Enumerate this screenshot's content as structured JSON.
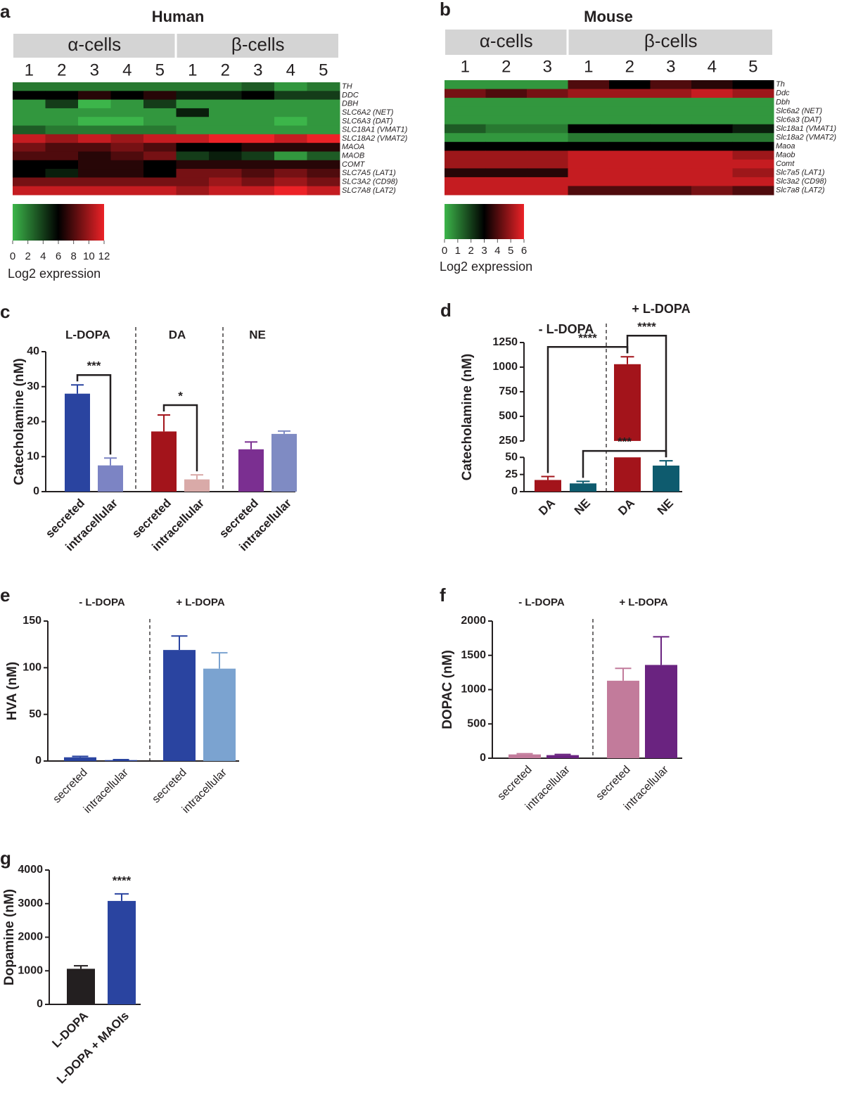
{
  "chart_data": [
    {
      "panel": "a",
      "type": "heatmap",
      "title": "Human",
      "cell_groups": [
        {
          "name": "α-cells",
          "samples": [
            "1",
            "2",
            "3",
            "4",
            "5"
          ]
        },
        {
          "name": "β-cells",
          "samples": [
            "1",
            "2",
            "3",
            "4",
            "5"
          ]
        }
      ],
      "genes": [
        "TH",
        "DDC",
        "DBH",
        "SLC6A2 (NET)",
        "SLC6A3 (DAT)",
        "SLC18A1 (VMAT1)",
        "SLC18A2 (VMAT2)",
        "MAOA",
        "MAOB",
        "COMT",
        "SLC7A5 (LAT1)",
        "SLC3A2 (CD98)",
        "SLC7A8 (LAT2)"
      ],
      "values": [
        [
          2,
          2,
          2,
          2,
          2,
          2,
          2,
          3,
          1,
          2
        ],
        [
          6,
          6,
          7,
          6,
          7,
          5,
          5,
          6,
          4,
          4
        ],
        [
          1,
          4,
          0,
          1,
          4,
          1,
          1,
          1,
          1,
          1
        ],
        [
          1,
          1,
          1,
          1,
          1,
          5,
          1,
          1,
          1,
          1
        ],
        [
          1,
          1,
          0,
          0,
          1,
          1,
          1,
          1,
          0,
          1
        ],
        [
          3,
          2,
          2,
          2,
          2,
          1,
          1,
          1,
          1,
          1
        ],
        [
          11,
          10,
          11,
          10,
          11,
          11,
          12,
          12,
          11,
          12
        ],
        [
          9,
          8,
          8,
          9,
          8,
          6,
          6,
          7,
          7,
          7
        ],
        [
          8,
          8,
          7,
          8,
          9,
          4,
          5,
          4,
          1,
          3
        ],
        [
          6,
          6,
          7,
          7,
          6,
          7,
          7,
          7,
          7,
          7
        ],
        [
          6,
          5,
          7,
          7,
          6,
          9,
          9,
          8,
          9,
          8
        ],
        [
          9,
          9,
          9,
          9,
          9,
          9,
          10,
          9,
          10,
          9
        ],
        [
          11,
          11,
          11,
          11,
          11,
          10,
          11,
          11,
          12,
          11
        ]
      ],
      "colorscale": [
        "#3cb54a",
        "#000000",
        "#ec2227"
      ],
      "zlim": [
        0,
        12
      ],
      "zticks": [
        0,
        2,
        4,
        6,
        8,
        10,
        12
      ],
      "colorbar_label": "Log2 expression"
    },
    {
      "panel": "b",
      "type": "heatmap",
      "title": "Mouse",
      "cell_groups": [
        {
          "name": "α-cells",
          "samples": [
            "1",
            "2",
            "3"
          ]
        },
        {
          "name": "β-cells",
          "samples": [
            "1",
            "2",
            "3",
            "4",
            "5"
          ]
        }
      ],
      "genes": [
        "Th",
        "Ddc",
        "Dbh",
        "Slc6a2 (NET)",
        "Slc6a3 (DAT)",
        "Slc18a1 (VMAT1)",
        "Slc18a2 (VMAT2)",
        "Maoa",
        "Maob",
        "Comt",
        "Slc7a5 (LAT1)",
        "Slc3a2 (CD98)",
        "Slc7a8 (LAT2)"
      ],
      "values": [
        [
          0.5,
          0.5,
          0.5,
          4,
          3,
          4,
          3.5,
          3
        ],
        [
          4.5,
          4,
          4.5,
          5,
          5,
          5,
          5.5,
          5
        ],
        [
          0.5,
          0.5,
          0.5,
          0.5,
          0.5,
          0.5,
          0.5,
          0.5
        ],
        [
          0.5,
          0.5,
          0.5,
          0.5,
          0.5,
          0.5,
          0.5,
          0.5
        ],
        [
          0.5,
          0.5,
          0.5,
          0.5,
          0.5,
          0.5,
          0.5,
          0.5
        ],
        [
          1.5,
          1,
          1,
          3,
          3,
          3,
          3,
          2.5
        ],
        [
          0.5,
          0.5,
          0.5,
          1,
          1,
          1,
          1,
          1
        ],
        [
          3,
          3,
          3,
          3,
          3,
          3,
          3,
          3
        ],
        [
          5,
          5,
          5,
          5.5,
          5.5,
          5.5,
          5.5,
          5
        ],
        [
          5,
          5,
          5,
          5.5,
          5.5,
          5.5,
          5.5,
          5.5
        ],
        [
          3.5,
          3.5,
          3.5,
          5.5,
          5.5,
          5.5,
          5.5,
          5
        ],
        [
          5.5,
          5.5,
          5.5,
          5.5,
          5.5,
          5.5,
          5.5,
          5.5
        ],
        [
          5.5,
          5.5,
          5.5,
          4,
          4,
          4,
          4.5,
          4
        ]
      ],
      "colorscale": [
        "#3cb54a",
        "#000000",
        "#ec2227"
      ],
      "zlim": [
        0,
        6
      ],
      "zticks": [
        0,
        1,
        2,
        3,
        4,
        5,
        6
      ],
      "colorbar_label": "Log2 expression"
    },
    {
      "panel": "c",
      "type": "bar",
      "ylabel": "Catecholamine (nM)",
      "groups": [
        "L-DOPA",
        "DA",
        "NE"
      ],
      "categories": [
        "secreted",
        "intracellular",
        "secreted",
        "intracellular",
        "secreted",
        "intracellular"
      ],
      "values": [
        28,
        7.5,
        17.2,
        3.5,
        12.1,
        16.5
      ],
      "errors": [
        2.5,
        2.1,
        4.7,
        1.3,
        2.1,
        0.8
      ],
      "colors": [
        "#2a44a0",
        "#7c84c4",
        "#a3141b",
        "#d9aaa8",
        "#7b2f91",
        "#7f8bc3"
      ],
      "ylim": [
        0,
        40
      ],
      "yticks": [
        0,
        10,
        20,
        30,
        40
      ],
      "annotations": [
        {
          "text": "***",
          "between": [
            0,
            1
          ]
        },
        {
          "text": "*",
          "between": [
            2,
            3
          ]
        }
      ]
    },
    {
      "panel": "d",
      "type": "bar",
      "ylabel": "Catecholamine (nM)",
      "groups": [
        "- L-DOPA",
        "+ L-DOPA"
      ],
      "categories": [
        "DA",
        "NE",
        "DA",
        "NE"
      ],
      "values": [
        17,
        12,
        1030,
        38
      ],
      "errors": [
        5,
        3,
        75,
        7
      ],
      "colors": [
        "#a3141b",
        "#0e5b6e",
        "#a3141b",
        "#0e5b6e"
      ],
      "ylim": [
        0,
        1250
      ],
      "yticks": [
        0,
        25,
        50,
        250,
        500,
        750,
        1000,
        1250
      ],
      "axis_break": [
        50,
        250
      ],
      "annotations": [
        {
          "text": "****",
          "between": [
            0,
            2
          ]
        },
        {
          "text": "****",
          "between": [
            2,
            3
          ]
        },
        {
          "text": "***",
          "between": [
            1,
            3
          ]
        }
      ]
    },
    {
      "panel": "e",
      "type": "bar",
      "ylabel": "HVA (nM)",
      "groups": [
        "- L-DOPA",
        "+ L-DOPA"
      ],
      "categories": [
        "secreted",
        "intracellular",
        "secreted",
        "intracellular"
      ],
      "values": [
        4,
        1,
        119,
        99
      ],
      "errors": [
        1,
        0.5,
        15,
        17
      ],
      "colors": [
        "#2a44a0",
        "#2a44a0",
        "#2a44a0",
        "#7ba3d0"
      ],
      "ylim": [
        0,
        150
      ],
      "yticks": [
        0,
        50,
        100,
        150
      ],
      "annotations": []
    },
    {
      "panel": "f",
      "type": "bar",
      "ylabel": "DOPAC (nM)",
      "groups": [
        "- L-DOPA",
        "+ L-DOPA"
      ],
      "categories": [
        "secreted",
        "intracellular",
        "secreted",
        "intracellular"
      ],
      "values": [
        55,
        45,
        1130,
        1360
      ],
      "errors": [
        10,
        10,
        180,
        410
      ],
      "colors": [
        "#c27b9b",
        "#6a2380",
        "#c27b9b",
        "#6a2380"
      ],
      "ylim": [
        0,
        2000
      ],
      "yticks": [
        0,
        500,
        1000,
        1500,
        2000
      ],
      "annotations": []
    },
    {
      "panel": "g",
      "type": "bar",
      "ylabel": "Dopamine (nM)",
      "groups": [],
      "categories": [
        "L-DOPA",
        "L-DOPA + MAOIs"
      ],
      "values": [
        1060,
        3080
      ],
      "errors": [
        90,
        210
      ],
      "colors": [
        "#231f20",
        "#2a44a0"
      ],
      "ylim": [
        0,
        4000
      ],
      "yticks": [
        0,
        1000,
        2000,
        3000,
        4000
      ],
      "annotations": [
        {
          "text": "****",
          "above": 1
        }
      ]
    }
  ]
}
